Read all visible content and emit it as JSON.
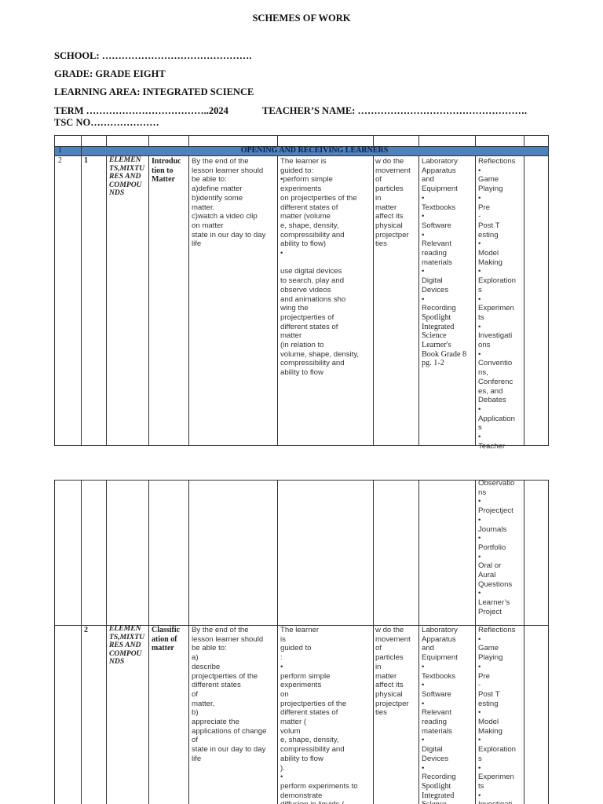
{
  "header": {
    "title": "SCHEMES OF WORK",
    "school": "SCHOOL: ……………………………………….",
    "grade": "GRADE: GRADE EIGHT",
    "learning_area": "LEARNING AREA: INTEGRATED SCIENCE",
    "term": "TERM ………………………………..2024",
    "teacher": "TEACHER’S NAME: …………………………………………….",
    "tsc": "TSC NO…………………"
  },
  "band_color": "#4f81bd",
  "table1": {
    "band_row_num": "1",
    "band_label": "OPENING AND RECEIVING LEARNERS",
    "row": {
      "week": "2",
      "lesson": "1",
      "strand": "ELEMEN\nTS,MIXTU\nRES AND\nCOMPOU\nNDS",
      "sub_strand": "Introduc\ntion to\nMatter",
      "outcomes": "By the end of the\nlesson learner should\nbe able to:\na)define matter\nb)identify some\nmatter.\nc)watch a video clip\non matter\nstate in our day to day\nlife",
      "experiences": "The learner is\nguided to:\n•perform simple\nexperiments\non projectperties of the\ndifferent states of\nmatter (volume\ne, shape, density,\ncompressibility and\nability to flow)\n•\n\nuse digital devices\nto search, play and\nobserve videos\nand animations sho\nwing the\nprojectperties of\ndifferent states of\nmatter\n(in relation to\nvolume, shape, density,\ncompressibility and\nability to flow",
      "inquiry": "w do the\nmovement\nof\nparticles\nin\nmatter\naffect its\nphysical\nprojectper\nties",
      "resources": "Laboratory\nApparatus\nand\nEquipment\n•\nTextbooks\n•\nSoftware\n•\nRelevant\nreading\nmaterials\n•\nDigital\nDevices\n•\nRecording",
      "resources_book": "Spotlight\nIntegrated\nScience\nLearner's\nBook Grade 8\npg. 1-2",
      "assessment": "Reflections\n•\nGame\nPlaying\n•\nPre\n-\nPost T\nesting\n•\nModel\nMaking\n•\nExploration\ns\n•\nExperimen\nts\n•\nInvestigati\nons\n•\nConventio\nns,\nConferenc\nes, and\nDebates\n•\nApplication\ns\n•\nTeacher"
    }
  },
  "table2": {
    "cont_assessment": "Observatio\nns\n•\nProjectject\n•\nJournals\n•\nPortfolio\n•\nOral or\nAural\nQuestions\n•\nLearner’s\nProject",
    "row": {
      "lesson": "2",
      "strand": "ELEMEN\nTS,MIXTU\nRES AND\nCOMPOU\nNDS",
      "sub_strand": "Classific\nation of\nmatter",
      "outcomes": "By the end of the\nlesson learner should\nbe able to:\na)\ndescribe\nprojectperties of the\ndifferent states\nof\nmatter,\nb)\nappreciate the\napplications of change\nof\nstate in our day to day\nlife",
      "experiences": "The learner\nis\nguided to\n:\n•\nperform simple\nexperiments\non\nprojectperties of the\ndifferent states of\nmatter (\nvolum\ne, shape, density,\ncompressibility and\nability to flow\n).\n•\nperform experiments to\ndemonstrate\ndiffusion in liquids (",
      "inquiry": "w do the\nmovement\nof\nparticles\nin\nmatter\naffect its\nphysical\nprojectper\nties",
      "resources": "Laboratory\nApparatus\nand\nEquipment\n•\nTextbooks\n•\nSoftware\n•\nRelevant\nreading\nmaterials\n•\nDigital\nDevices\n•\nRecording",
      "resources_book": "Spotlight\nIntegrated\nScience",
      "assessment": "Reflections\n•\nGame\nPlaying\n•\nPre\n-\nPost T\nesting\n•\nModel\nMaking\n•\nExploration\ns\n•\nExperimen\nts\n•\nInvestigati"
    }
  }
}
